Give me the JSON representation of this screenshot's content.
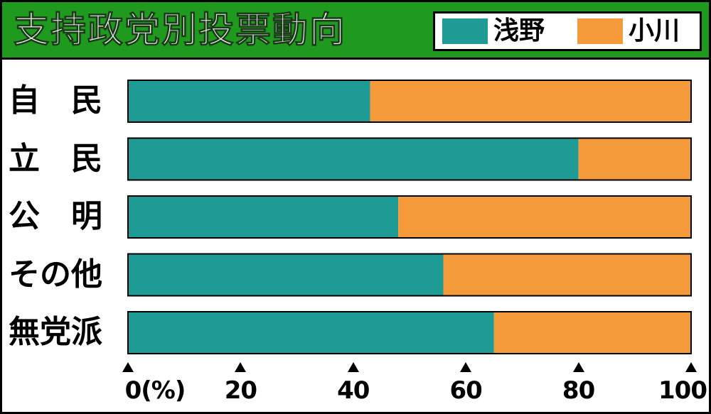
{
  "chart_data": {
    "type": "bar",
    "stacked": true,
    "orientation": "horizontal",
    "title": "支持政党別投票動向",
    "categories": [
      "自　民",
      "立　民",
      "公　明",
      "その他",
      "無党派"
    ],
    "series": [
      {
        "name": "浅野",
        "color": "#1e9b95",
        "values": [
          43,
          80,
          48,
          56,
          65
        ]
      },
      {
        "name": "小川",
        "color": "#f59a3a",
        "values": [
          57,
          20,
          52,
          44,
          35
        ]
      }
    ],
    "xlim": [
      0,
      100
    ],
    "xticks": [
      "0(%)",
      "20",
      "40",
      "60",
      "80",
      "100"
    ],
    "xtick_values": [
      0,
      20,
      40,
      60,
      80,
      100
    ],
    "legend_position": "top-right"
  }
}
